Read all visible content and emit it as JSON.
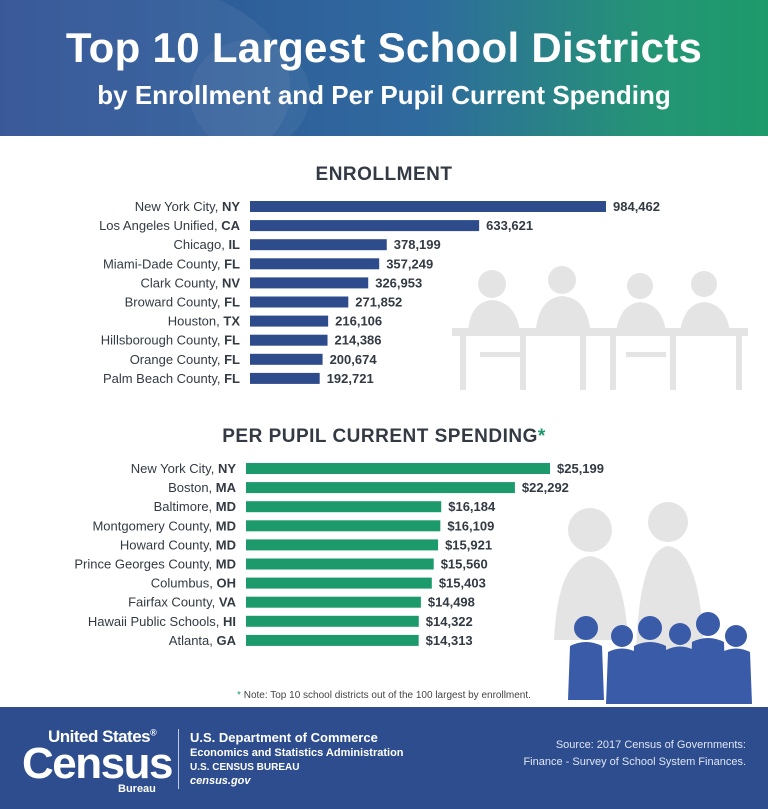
{
  "header": {
    "title": "Top 10 Largest School Districts",
    "subtitle": "by Enrollment and Per Pupil Current Spending"
  },
  "colors": {
    "enrollment_bar": "#2e4b8c",
    "spending_bar": "#1d9a6c",
    "header_left": "#2e4f93",
    "header_right": "#1d9a6c",
    "footer": "#2d4d8e",
    "silhouette": "#e4e4e4",
    "kids": "#3a5ba8"
  },
  "chart_data": [
    {
      "type": "bar",
      "orientation": "horizontal",
      "title": "ENROLLMENT",
      "title_mark": "",
      "categories": [
        {
          "name": "New York City,",
          "state": "NY"
        },
        {
          "name": "Los Angeles Unified,",
          "state": "CA"
        },
        {
          "name": "Chicago,",
          "state": "IL"
        },
        {
          "name": "Miami-Dade County,",
          "state": "FL"
        },
        {
          "name": "Clark County,",
          "state": "NV"
        },
        {
          "name": "Broward County,",
          "state": "FL"
        },
        {
          "name": "Houston,",
          "state": "TX"
        },
        {
          "name": "Hillsborough County,",
          "state": "FL"
        },
        {
          "name": "Orange County,",
          "state": "FL"
        },
        {
          "name": "Palm Beach County,",
          "state": "FL"
        }
      ],
      "values": [
        984462,
        633621,
        378199,
        357249,
        326953,
        271852,
        216106,
        214386,
        200674,
        192721
      ],
      "value_labels": [
        "984,462",
        "633,621",
        "378,199",
        "357,249",
        "326,953",
        "271,852",
        "216,106",
        "214,386",
        "200,674",
        "192,721"
      ],
      "xlim": [
        0,
        984462
      ],
      "grid": false,
      "color": "#2e4b8c"
    },
    {
      "type": "bar",
      "orientation": "horizontal",
      "title": "PER PUPIL CURRENT SPENDING",
      "title_mark": "*",
      "categories": [
        {
          "name": "New York City,",
          "state": "NY"
        },
        {
          "name": "Boston,",
          "state": "MA"
        },
        {
          "name": "Baltimore,",
          "state": "MD"
        },
        {
          "name": "Montgomery County,",
          "state": "MD"
        },
        {
          "name": "Howard County,",
          "state": "MD"
        },
        {
          "name": "Prince Georges County,",
          "state": "MD"
        },
        {
          "name": "Columbus,",
          "state": "OH"
        },
        {
          "name": "Fairfax County,",
          "state": "VA"
        },
        {
          "name": "Hawaii Public Schools,",
          "state": "HI"
        },
        {
          "name": "Atlanta,",
          "state": "GA"
        }
      ],
      "values": [
        25199,
        22292,
        16184,
        16109,
        15921,
        15560,
        15403,
        14498,
        14322,
        14313
      ],
      "value_labels": [
        "$25,199",
        "$22,292",
        "$16,184",
        "$16,109",
        "$15,921",
        "$15,560",
        "$15,403",
        "$14,498",
        "$14,322",
        "$14,313"
      ],
      "xlim": [
        0,
        25199
      ],
      "grid": false,
      "color": "#1d9a6c"
    }
  ],
  "note": {
    "mark": "*",
    "text": " Note: Top 10 school districts out of the 100 largest by enrollment."
  },
  "footer": {
    "logo_united_states": "United States",
    "logo_registered": "®",
    "logo_census": "Census",
    "logo_bureau": "Bureau",
    "dept_line1": "U.S. Department of Commerce",
    "dept_line2": "Economics and Statistics Administration",
    "dept_line3": "U.S. CENSUS BUREAU",
    "dept_line4": "census.gov",
    "source_line1": "Source: 2017 Census of Governments:",
    "source_line2": "Finance - Survey of School System Finances."
  }
}
